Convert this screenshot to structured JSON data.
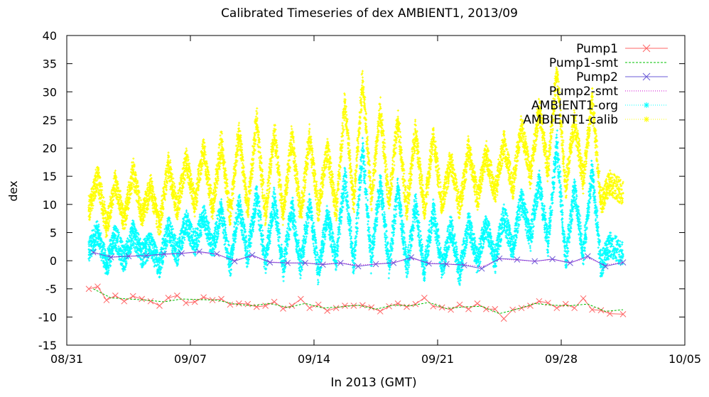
{
  "chart_data": {
    "type": "scatter",
    "title": "Calibrated Timeseries of dex AMBIENT1, 2013/09",
    "xlabel": "In 2013 (GMT)",
    "ylabel": "dex",
    "xlim": [
      "2013-08-31",
      "2013-10-05"
    ],
    "ylim": [
      -15,
      40
    ],
    "xticks": [
      "08/31",
      "09/07",
      "09/14",
      "09/21",
      "09/28",
      "10/05"
    ],
    "yticks": [
      "-15",
      "-10",
      "-5",
      "0",
      "5",
      "10",
      "15",
      "20",
      "25",
      "30",
      "35",
      "40"
    ],
    "grid": false,
    "legend_position": "top-right",
    "series": [
      {
        "name": "Pump1",
        "style": "line+x",
        "color": "#ff6666",
        "x": [
          "2013-09-01",
          "2013-09-01",
          "2013-09-02",
          "2013-09-02",
          "2013-09-03",
          "2013-09-03",
          "2013-09-04",
          "2013-09-04",
          "2013-09-05",
          "2013-09-05",
          "2013-09-06",
          "2013-09-06",
          "2013-09-07",
          "2013-09-07",
          "2013-09-08",
          "2013-09-08",
          "2013-09-09",
          "2013-09-09",
          "2013-09-10",
          "2013-09-10",
          "2013-09-11",
          "2013-09-11",
          "2013-09-12",
          "2013-09-12",
          "2013-09-13",
          "2013-09-13",
          "2013-09-14",
          "2013-09-14",
          "2013-09-15",
          "2013-09-15",
          "2013-09-16",
          "2013-09-16",
          "2013-09-17",
          "2013-09-17",
          "2013-09-18",
          "2013-09-18",
          "2013-09-19",
          "2013-09-19",
          "2013-09-20",
          "2013-09-20",
          "2013-09-21",
          "2013-09-21",
          "2013-09-22",
          "2013-09-22",
          "2013-09-23",
          "2013-09-23",
          "2013-09-24",
          "2013-09-24",
          "2013-09-25",
          "2013-09-25",
          "2013-09-26",
          "2013-09-26",
          "2013-09-27",
          "2013-09-27",
          "2013-09-28",
          "2013-09-28",
          "2013-09-29",
          "2013-09-29",
          "2013-09-30",
          "2013-09-30",
          "2013-10-01"
        ],
        "y": [
          -5.0,
          -4.6,
          -7.0,
          -6.2,
          -7.2,
          -6.3,
          -6.8,
          -7.2,
          -8.0,
          -6.6,
          -6.2,
          -7.5,
          -7.3,
          -6.5,
          -7.0,
          -6.8,
          -7.8,
          -7.6,
          -7.7,
          -8.2,
          -8.0,
          -7.3,
          -8.5,
          -8.0,
          -6.8,
          -8.4,
          -7.8,
          -8.9,
          -8.4,
          -8.0,
          -8.0,
          -7.9,
          -8.3,
          -9.0,
          -8.1,
          -7.6,
          -8.2,
          -7.7,
          -6.6,
          -8.1,
          -8.3,
          -8.7,
          -7.8,
          -8.6,
          -7.6,
          -8.6,
          -8.6,
          -10.3,
          -8.7,
          -8.4,
          -8.0,
          -7.2,
          -7.5,
          -8.4,
          -7.7,
          -8.4,
          -6.7,
          -8.7,
          -8.8,
          -9.4,
          -9.5
        ]
      },
      {
        "name": "Pump1-smt",
        "style": "dashed",
        "color": "#00c000",
        "x": [
          "2013-09-01",
          "2013-09-02",
          "2013-09-03",
          "2013-09-04",
          "2013-09-05",
          "2013-09-06",
          "2013-09-07",
          "2013-09-08",
          "2013-09-09",
          "2013-09-10",
          "2013-09-11",
          "2013-09-12",
          "2013-09-13",
          "2013-09-14",
          "2013-09-15",
          "2013-09-16",
          "2013-09-17",
          "2013-09-18",
          "2013-09-19",
          "2013-09-20",
          "2013-09-21",
          "2013-09-22",
          "2013-09-23",
          "2013-09-24",
          "2013-09-25",
          "2013-09-26",
          "2013-09-27",
          "2013-09-28",
          "2013-09-29",
          "2013-09-30",
          "2013-10-01"
        ],
        "y": [
          -5.0,
          -6.6,
          -6.8,
          -7.0,
          -7.3,
          -6.8,
          -6.9,
          -7.0,
          -7.7,
          -8.0,
          -7.6,
          -8.3,
          -7.6,
          -8.4,
          -8.2,
          -7.9,
          -8.6,
          -7.9,
          -8.0,
          -7.4,
          -8.5,
          -8.2,
          -8.1,
          -9.4,
          -8.6,
          -7.6,
          -7.9,
          -8.0,
          -7.7,
          -9.0,
          -8.7
        ]
      },
      {
        "name": "Pump2",
        "style": "line+x",
        "color": "#6b5bd7",
        "x": [
          "2013-09-01",
          "2013-09-02",
          "2013-09-03",
          "2013-09-04",
          "2013-09-05",
          "2013-09-06",
          "2013-09-07",
          "2013-09-08",
          "2013-09-09",
          "2013-09-10",
          "2013-09-11",
          "2013-09-12",
          "2013-09-13",
          "2013-09-14",
          "2013-09-15",
          "2013-09-16",
          "2013-09-17",
          "2013-09-18",
          "2013-09-19",
          "2013-09-20",
          "2013-09-21",
          "2013-09-22",
          "2013-09-23",
          "2013-09-24",
          "2013-09-25",
          "2013-09-26",
          "2013-09-27",
          "2013-09-28",
          "2013-09-29",
          "2013-09-30",
          "2013-10-01"
        ],
        "y": [
          1.5,
          0.6,
          0.8,
          0.9,
          1.2,
          1.3,
          1.6,
          1.2,
          -0.1,
          1.0,
          -0.3,
          -0.4,
          -0.4,
          -0.7,
          -0.4,
          -1.0,
          -0.6,
          -0.4,
          0.6,
          -0.5,
          -0.6,
          -0.8,
          -1.4,
          0.4,
          0.2,
          -0.1,
          0.3,
          -0.4,
          0.8,
          -1.0,
          -0.3
        ]
      },
      {
        "name": "Pump2-smt",
        "style": "dotted",
        "color": "#d000d0",
        "x": [
          "2013-09-01",
          "2013-09-02",
          "2013-09-03",
          "2013-09-04",
          "2013-09-05",
          "2013-09-06",
          "2013-09-07",
          "2013-09-08",
          "2013-09-09",
          "2013-09-10",
          "2013-09-11",
          "2013-09-12",
          "2013-09-13",
          "2013-09-14",
          "2013-09-15",
          "2013-09-16",
          "2013-09-17",
          "2013-09-18",
          "2013-09-19",
          "2013-09-20",
          "2013-09-21",
          "2013-09-22",
          "2013-09-23",
          "2013-09-24",
          "2013-09-25",
          "2013-09-26",
          "2013-09-27",
          "2013-09-28",
          "2013-09-29",
          "2013-09-30",
          "2013-10-01"
        ],
        "y": [
          1.4,
          0.7,
          0.8,
          0.9,
          1.1,
          1.3,
          1.5,
          1.1,
          0.1,
          0.8,
          -0.2,
          -0.4,
          -0.4,
          -0.6,
          -0.4,
          -0.8,
          -0.6,
          -0.3,
          0.4,
          -0.4,
          -0.6,
          -0.7,
          -1.1,
          0.3,
          0.1,
          -0.1,
          0.2,
          -0.3,
          0.5,
          -0.8,
          -0.3
        ]
      },
      {
        "name": "AMBIENT1-org",
        "style": "points",
        "color": "#00ffff",
        "x": [
          "2013-09-01",
          "2013-09-01",
          "2013-09-02",
          "2013-09-02",
          "2013-09-03",
          "2013-09-03",
          "2013-09-04",
          "2013-09-04",
          "2013-09-05",
          "2013-09-05",
          "2013-09-06",
          "2013-09-06",
          "2013-09-07",
          "2013-09-07",
          "2013-09-08",
          "2013-09-08",
          "2013-09-09",
          "2013-09-09",
          "2013-09-10",
          "2013-09-10",
          "2013-09-11",
          "2013-09-11",
          "2013-09-12",
          "2013-09-12",
          "2013-09-13",
          "2013-09-13",
          "2013-09-14",
          "2013-09-14",
          "2013-09-15",
          "2013-09-15",
          "2013-09-16",
          "2013-09-16",
          "2013-09-17",
          "2013-09-17",
          "2013-09-18",
          "2013-09-18",
          "2013-09-19",
          "2013-09-19",
          "2013-09-20",
          "2013-09-20",
          "2013-09-21",
          "2013-09-21",
          "2013-09-22",
          "2013-09-22",
          "2013-09-23",
          "2013-09-23",
          "2013-09-24",
          "2013-09-24",
          "2013-09-25",
          "2013-09-25",
          "2013-09-26",
          "2013-09-26",
          "2013-09-27",
          "2013-09-27",
          "2013-09-28",
          "2013-09-28",
          "2013-09-29",
          "2013-09-29",
          "2013-09-30",
          "2013-09-30",
          "2013-10-01"
        ],
        "y": [
          2.0,
          5.0,
          -1.0,
          4.5,
          0.0,
          5.0,
          1.0,
          3.0,
          -1.0,
          6.0,
          1.0,
          7.0,
          3.0,
          8.0,
          2.0,
          9.0,
          -1.0,
          10.0,
          0.5,
          12.0,
          -0.5,
          11.0,
          -1.5,
          9.5,
          -1.0,
          10.0,
          -2.0,
          8.0,
          0.0,
          15.0,
          -1.0,
          20.0,
          0.0,
          14.0,
          -1.0,
          13.0,
          -1.5,
          10.0,
          -2.0,
          9.0,
          -1.5,
          6.0,
          -2.5,
          7.0,
          0.0,
          6.5,
          0.0,
          8.0,
          2.0,
          11.0,
          4.0,
          14.0,
          3.0,
          21.0,
          0.0,
          13.0,
          1.0,
          16.0,
          -1.0,
          3.0,
          1.0
        ]
      },
      {
        "name": "AMBIENT1-calib",
        "style": "points",
        "color": "#ffff00",
        "x": [
          "2013-09-01",
          "2013-09-01",
          "2013-09-02",
          "2013-09-02",
          "2013-09-03",
          "2013-09-03",
          "2013-09-04",
          "2013-09-04",
          "2013-09-05",
          "2013-09-05",
          "2013-09-06",
          "2013-09-06",
          "2013-09-07",
          "2013-09-07",
          "2013-09-08",
          "2013-09-08",
          "2013-09-09",
          "2013-09-09",
          "2013-09-10",
          "2013-09-10",
          "2013-09-11",
          "2013-09-11",
          "2013-09-12",
          "2013-09-12",
          "2013-09-13",
          "2013-09-13",
          "2013-09-14",
          "2013-09-14",
          "2013-09-15",
          "2013-09-15",
          "2013-09-16",
          "2013-09-16",
          "2013-09-17",
          "2013-09-17",
          "2013-09-18",
          "2013-09-18",
          "2013-09-19",
          "2013-09-19",
          "2013-09-20",
          "2013-09-20",
          "2013-09-21",
          "2013-09-21",
          "2013-09-22",
          "2013-09-22",
          "2013-09-23",
          "2013-09-23",
          "2013-09-24",
          "2013-09-24",
          "2013-09-25",
          "2013-09-25",
          "2013-09-26",
          "2013-09-26",
          "2013-09-27",
          "2013-09-27",
          "2013-09-28",
          "2013-09-28",
          "2013-09-29",
          "2013-09-29",
          "2013-09-30",
          "2013-09-30",
          "2013-10-01"
        ],
        "y": [
          9.0,
          15.0,
          6.0,
          14.0,
          7.0,
          16.0,
          8.0,
          13.0,
          6.0,
          17.0,
          9.0,
          18.0,
          10.0,
          20.0,
          9.0,
          21.0,
          8.0,
          23.0,
          9.0,
          25.0,
          8.0,
          23.0,
          8.0,
          22.0,
          8.0,
          22.0,
          9.0,
          20.0,
          9.0,
          28.0,
          10.0,
          32.0,
          11.0,
          27.0,
          10.0,
          25.0,
          9.0,
          23.0,
          9.0,
          22.0,
          10.0,
          18.0,
          9.0,
          20.0,
          11.0,
          19.0,
          12.0,
          21.0,
          13.0,
          24.0,
          15.0,
          27.0,
          16.0,
          34.0,
          13.0,
          25.0,
          14.0,
          29.0,
          10.0,
          14.0,
          12.0
        ]
      }
    ]
  }
}
